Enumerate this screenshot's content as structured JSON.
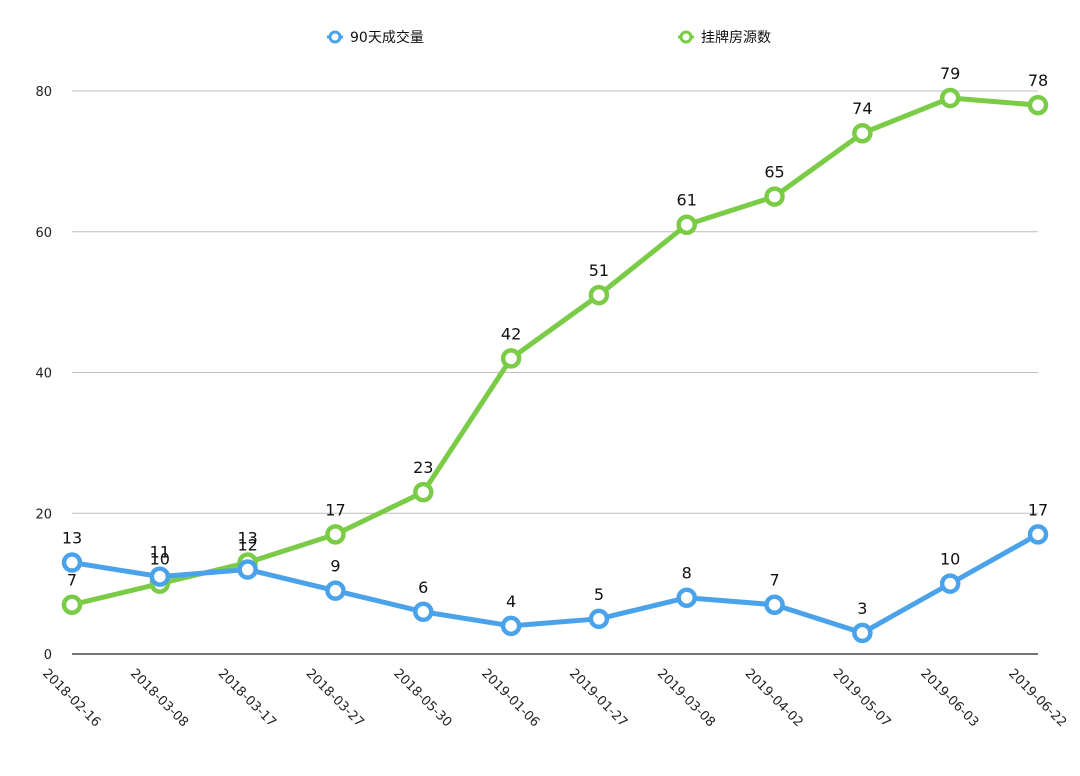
{
  "chart_data": {
    "type": "line",
    "categories": [
      "2018-02-16",
      "2018-03-08",
      "2018-03-17",
      "2018-03-27",
      "2018-05-30",
      "2019-01-06",
      "2019-01-27",
      "2019-03-08",
      "2019-04-02",
      "2019-05-07",
      "2019-06-03",
      "2019-06-22"
    ],
    "series": [
      {
        "name": "90天成交量",
        "color": "#4AA3EA",
        "values": [
          13,
          11,
          12,
          9,
          6,
          4,
          5,
          8,
          7,
          3,
          10,
          17
        ]
      },
      {
        "name": "挂牌房源数",
        "color": "#7ACB46",
        "values": [
          7,
          10,
          13,
          17,
          23,
          42,
          51,
          61,
          65,
          74,
          79,
          78
        ]
      }
    ],
    "ylim": [
      0,
      80
    ],
    "yticks": [
      0,
      20,
      40,
      60,
      80
    ],
    "grid": true,
    "legend_position": "top-center",
    "data_labels": true
  }
}
